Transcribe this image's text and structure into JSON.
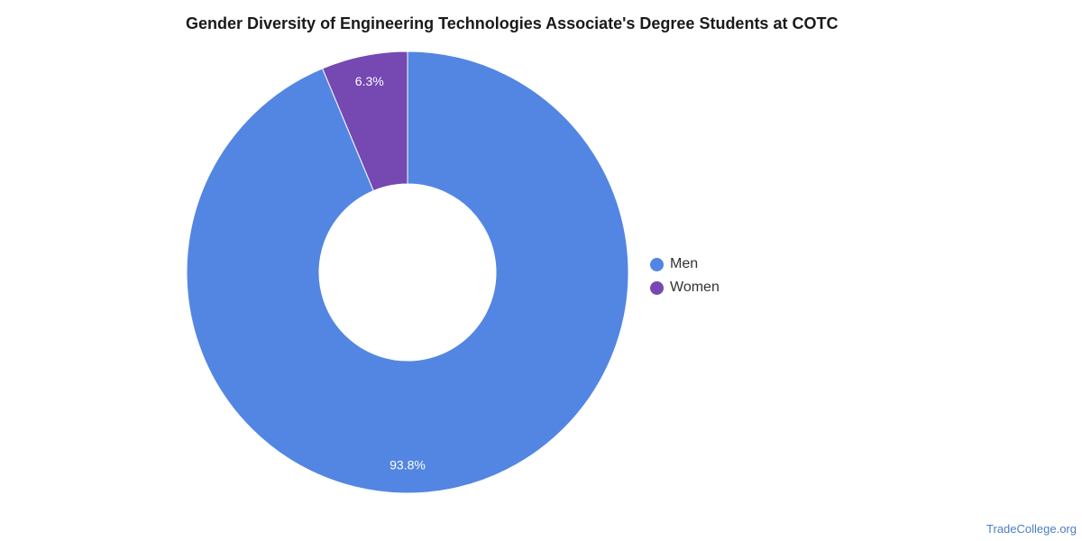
{
  "chart_data": {
    "type": "pie",
    "title": "Gender Diversity of Engineering Technologies Associate's Degree Students at COTC",
    "slices": [
      {
        "label": "Men",
        "value": 93.8,
        "value_label": "93.8%",
        "color": "#5286e2"
      },
      {
        "label": "Women",
        "value": 6.3,
        "value_label": "6.3%",
        "color": "#7548b2"
      }
    ],
    "donut": true,
    "legend_position": "right"
  },
  "source": "TradeCollege.org"
}
